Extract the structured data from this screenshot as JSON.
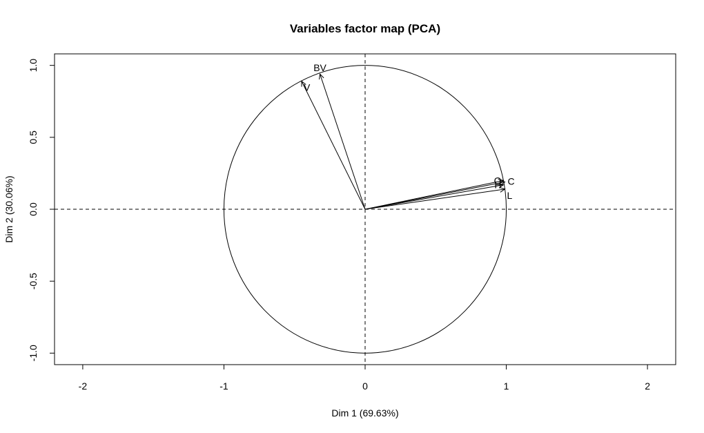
{
  "chart_data": {
    "type": "scatter",
    "title": "Variables factor map (PCA)",
    "xlabel": "Dim 1 (69.63%)",
    "ylabel": "Dim 2 (30.06%)",
    "xlim": [
      -2.2,
      2.2
    ],
    "ylim": [
      -1.08,
      1.08
    ],
    "x_ticks": [
      {
        "value": -2,
        "label": "-2"
      },
      {
        "value": -1,
        "label": "-1"
      },
      {
        "value": 0,
        "label": "0"
      },
      {
        "value": 1,
        "label": "1"
      },
      {
        "value": 2,
        "label": "2"
      }
    ],
    "y_ticks": [
      {
        "value": -1.0,
        "label": "-1.0"
      },
      {
        "value": -0.5,
        "label": "-0.5"
      },
      {
        "value": 0.0,
        "label": "0.0"
      },
      {
        "value": 0.5,
        "label": "0.5"
      },
      {
        "value": 1.0,
        "label": "1.0"
      }
    ],
    "unit_circle": true,
    "reference_lines": [
      0,
      0
    ],
    "variables": [
      {
        "name": "BV",
        "x": -0.32,
        "y": 0.94,
        "label_pos": "top"
      },
      {
        "name": "V",
        "x": -0.45,
        "y": 0.89,
        "label_pos": "bottom-right"
      },
      {
        "name": "O",
        "x": 0.98,
        "y": 0.2,
        "label_pos": "left"
      },
      {
        "name": "C",
        "x": 0.99,
        "y": 0.19,
        "label_pos": "right"
      },
      {
        "name": "H",
        "x": 0.98,
        "y": 0.17,
        "label_pos": "left"
      },
      {
        "name": "L",
        "x": 0.99,
        "y": 0.14,
        "label_pos": "bottom-right"
      }
    ]
  }
}
